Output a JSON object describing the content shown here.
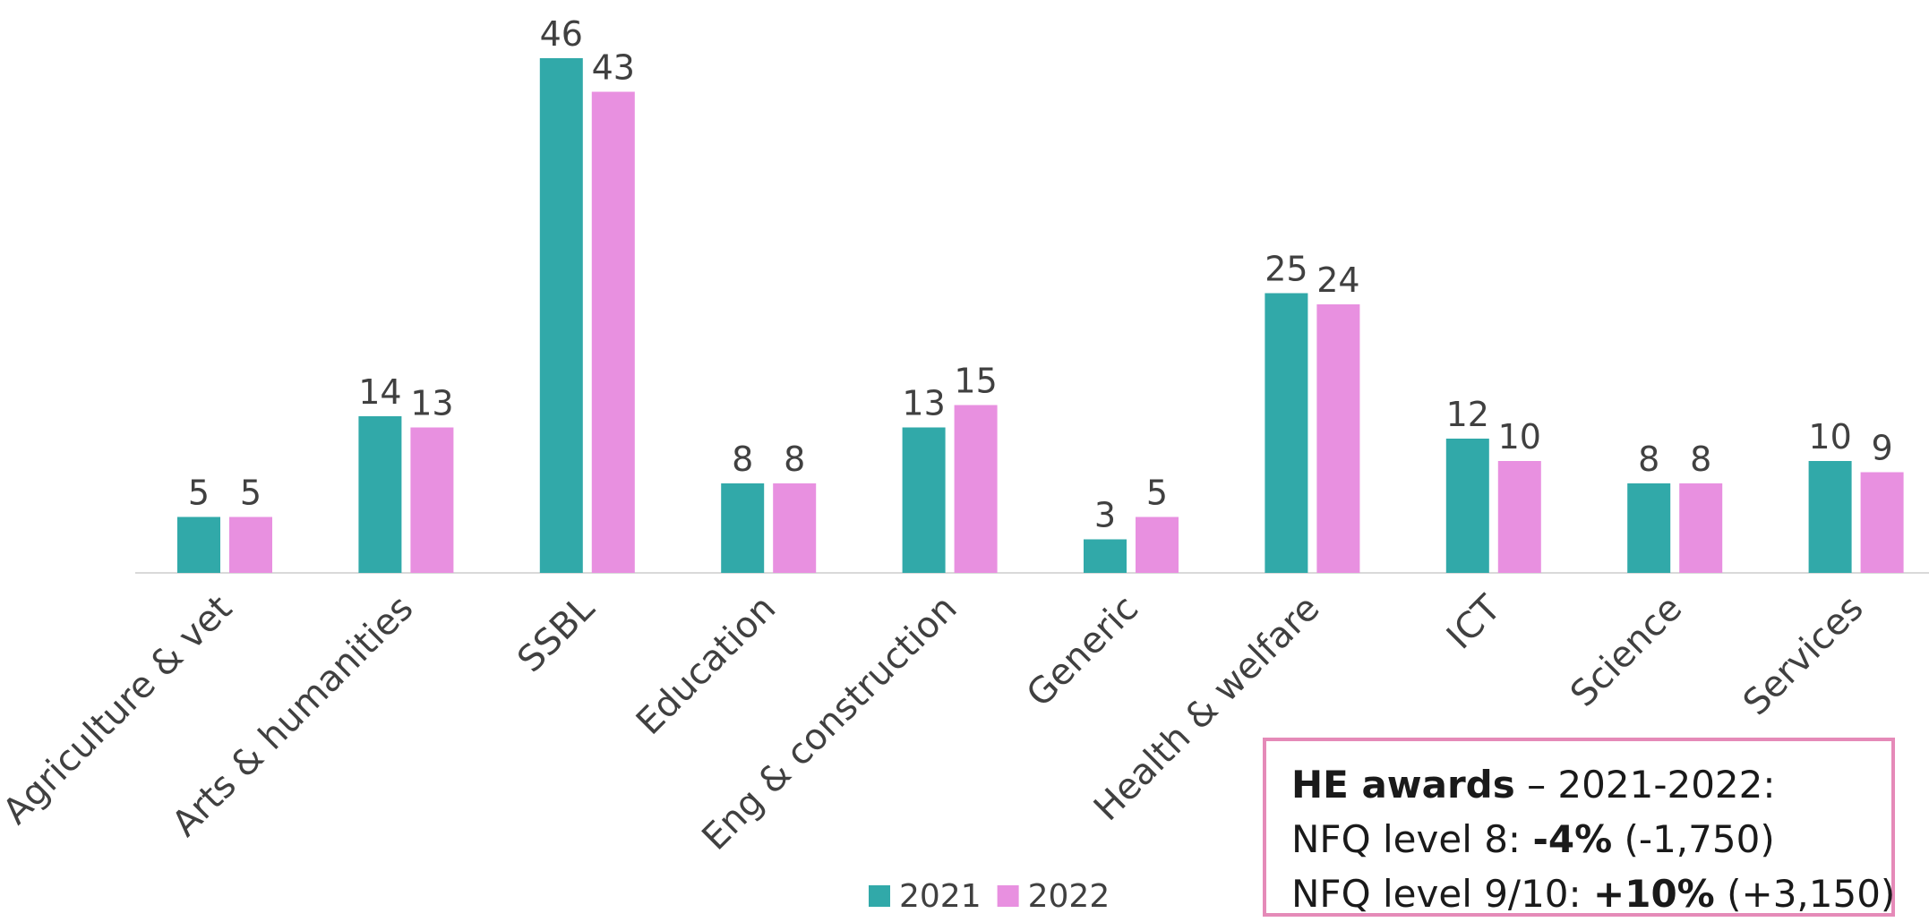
{
  "chart_data": {
    "type": "bar",
    "categories": [
      "Agriculture & vet",
      "Arts & humanities",
      "SSBL",
      "Education",
      "Eng & construction",
      "Generic",
      "Health & welfare",
      "ICT",
      "Science",
      "Services"
    ],
    "series": [
      {
        "name": "2021",
        "color": "#31a9a9",
        "values": [
          5,
          14,
          46,
          8,
          13,
          3,
          25,
          12,
          8,
          10
        ]
      },
      {
        "name": "2022",
        "color": "#e890e0",
        "values": [
          5,
          13,
          43,
          8,
          15,
          5,
          24,
          10,
          8,
          9
        ]
      }
    ],
    "legend": "bottom",
    "annotation": {
      "lines": [
        [
          {
            "text": "HE awards",
            "bold": true
          },
          {
            "text": " – 2021-2022:",
            "bold": false
          }
        ],
        [
          {
            "text": "NFQ level 8: ",
            "bold": false
          },
          {
            "text": "-4%",
            "bold": true
          },
          {
            "text": " (-1,750)",
            "bold": false
          }
        ],
        [
          {
            "text": "NFQ level 9/10: ",
            "bold": false
          },
          {
            "text": "+10%",
            "bold": true
          },
          {
            "text": " (+3,150)",
            "bold": false
          }
        ]
      ]
    }
  }
}
